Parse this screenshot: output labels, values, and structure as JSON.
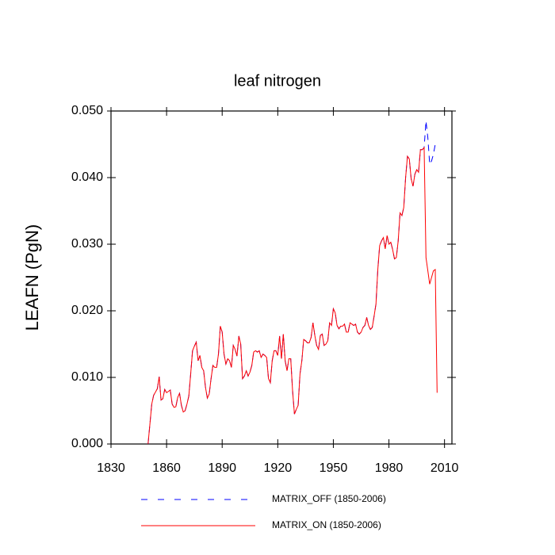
{
  "chart_data": {
    "type": "line",
    "title": "leaf nitrogen",
    "y_label": "LEAFN  (PgN)",
    "x": [
      1850,
      1851,
      1852,
      1853,
      1854,
      1855,
      1856,
      1857,
      1858,
      1859,
      1860,
      1861,
      1862,
      1863,
      1864,
      1865,
      1866,
      1867,
      1868,
      1869,
      1870,
      1871,
      1872,
      1873,
      1874,
      1875,
      1876,
      1877,
      1878,
      1879,
      1880,
      1881,
      1882,
      1883,
      1884,
      1885,
      1886,
      1887,
      1888,
      1889,
      1890,
      1891,
      1892,
      1893,
      1894,
      1895,
      1896,
      1897,
      1898,
      1899,
      1900,
      1901,
      1902,
      1903,
      1904,
      1905,
      1906,
      1907,
      1908,
      1909,
      1910,
      1911,
      1912,
      1913,
      1914,
      1915,
      1916,
      1917,
      1918,
      1919,
      1920,
      1921,
      1922,
      1923,
      1924,
      1925,
      1926,
      1927,
      1928,
      1929,
      1930,
      1931,
      1932,
      1933,
      1934,
      1935,
      1936,
      1937,
      1938,
      1939,
      1940,
      1941,
      1942,
      1943,
      1944,
      1945,
      1946,
      1947,
      1948,
      1949,
      1950,
      1951,
      1952,
      1953,
      1954,
      1955,
      1956,
      1957,
      1958,
      1959,
      1960,
      1961,
      1962,
      1963,
      1964,
      1965,
      1966,
      1967,
      1968,
      1969,
      1970,
      1971,
      1972,
      1973,
      1974,
      1975,
      1976,
      1977,
      1978,
      1979,
      1980,
      1981,
      1982,
      1983,
      1984,
      1985,
      1986,
      1987,
      1988,
      1989,
      1990,
      1991,
      1992,
      1993,
      1994,
      1995,
      1996,
      1997,
      1998,
      1999,
      2000,
      2001,
      2002,
      2003,
      2004,
      2005,
      2006
    ],
    "series": [
      {
        "name": "MATRIX_OFF (1850-2006)",
        "color": "#0000ff",
        "dash": true,
        "values": [
          0,
          0.003,
          0.006,
          0.0073,
          0.0078,
          0.0083,
          0.0101,
          0.0066,
          0.0068,
          0.0082,
          0.0077,
          0.0079,
          0.0081,
          0.006,
          0.0055,
          0.0056,
          0.007,
          0.0076,
          0.0058,
          0.0048,
          0.005,
          0.006,
          0.0072,
          0.0105,
          0.014,
          0.0147,
          0.0153,
          0.0125,
          0.0133,
          0.0115,
          0.011,
          0.0085,
          0.0069,
          0.0075,
          0.0098,
          0.0118,
          0.0115,
          0.0115,
          0.0135,
          0.0177,
          0.0168,
          0.0135,
          0.012,
          0.0128,
          0.0125,
          0.0115,
          0.0148,
          0.0142,
          0.0132,
          0.0162,
          0.015,
          0.0098,
          0.0102,
          0.011,
          0.0102,
          0.0108,
          0.0118,
          0.0138,
          0.014,
          0.0138,
          0.014,
          0.013,
          0.0135,
          0.0133,
          0.013,
          0.0098,
          0.0092,
          0.0125,
          0.014,
          0.014,
          0.0133,
          0.0162,
          0.0128,
          0.0165,
          0.0125,
          0.011,
          0.0128,
          0.0128,
          0.008,
          0.0045,
          0.0052,
          0.0058,
          0.0105,
          0.0125,
          0.0157,
          0.0155,
          0.0152,
          0.0152,
          0.016,
          0.0182,
          0.0163,
          0.0148,
          0.0142,
          0.0163,
          0.0165,
          0.0148,
          0.015,
          0.0155,
          0.0182,
          0.0178,
          0.0203,
          0.0197,
          0.0178,
          0.0173,
          0.0177,
          0.0177,
          0.018,
          0.0168,
          0.0168,
          0.0182,
          0.018,
          0.0178,
          0.018,
          0.0168,
          0.0165,
          0.0168,
          0.0175,
          0.0178,
          0.019,
          0.0178,
          0.0172,
          0.0175,
          0.0192,
          0.021,
          0.0262,
          0.0298,
          0.0305,
          0.031,
          0.0293,
          0.0313,
          0.03,
          0.0303,
          0.0292,
          0.0278,
          0.028,
          0.0305,
          0.0347,
          0.0343,
          0.0355,
          0.04,
          0.0432,
          0.0428,
          0.0398,
          0.0387,
          0.0405,
          0.0412,
          0.0408,
          0.0442,
          0.0442,
          0.0445,
          0.0485,
          0.046,
          0.042,
          0.0425,
          0.0435,
          0.045,
          0.045
        ]
      },
      {
        "name": "MATRIX_ON (1850-2006)",
        "color": "#ff0000",
        "dash": false,
        "values": [
          0,
          0.003,
          0.006,
          0.0073,
          0.0078,
          0.0083,
          0.0101,
          0.0066,
          0.0068,
          0.0082,
          0.0077,
          0.0079,
          0.0081,
          0.006,
          0.0055,
          0.0056,
          0.007,
          0.0076,
          0.0058,
          0.0048,
          0.005,
          0.006,
          0.0072,
          0.0105,
          0.014,
          0.0147,
          0.0153,
          0.0125,
          0.0133,
          0.0115,
          0.011,
          0.0085,
          0.0069,
          0.0075,
          0.0098,
          0.0118,
          0.0115,
          0.0115,
          0.0135,
          0.0177,
          0.0168,
          0.0135,
          0.012,
          0.0128,
          0.0125,
          0.0115,
          0.0148,
          0.0142,
          0.0132,
          0.0162,
          0.015,
          0.0098,
          0.0102,
          0.011,
          0.0102,
          0.0108,
          0.0118,
          0.0138,
          0.014,
          0.0138,
          0.014,
          0.013,
          0.0135,
          0.0133,
          0.013,
          0.0098,
          0.0092,
          0.0125,
          0.014,
          0.014,
          0.0133,
          0.0162,
          0.0128,
          0.0165,
          0.0125,
          0.011,
          0.0128,
          0.0128,
          0.008,
          0.0045,
          0.0052,
          0.0058,
          0.0105,
          0.0125,
          0.0157,
          0.0155,
          0.0152,
          0.0152,
          0.016,
          0.0182,
          0.0163,
          0.0148,
          0.0142,
          0.0163,
          0.0165,
          0.0148,
          0.015,
          0.0155,
          0.0182,
          0.0178,
          0.0203,
          0.0197,
          0.0178,
          0.0173,
          0.0177,
          0.0177,
          0.018,
          0.0168,
          0.0168,
          0.0182,
          0.018,
          0.0178,
          0.018,
          0.0168,
          0.0165,
          0.0168,
          0.0175,
          0.0178,
          0.019,
          0.0178,
          0.0172,
          0.0175,
          0.0192,
          0.021,
          0.0262,
          0.0298,
          0.0305,
          0.031,
          0.0293,
          0.0313,
          0.03,
          0.0303,
          0.0292,
          0.0278,
          0.028,
          0.0305,
          0.0347,
          0.0343,
          0.0355,
          0.04,
          0.0432,
          0.0428,
          0.0398,
          0.0387,
          0.0405,
          0.0412,
          0.0408,
          0.0442,
          0.0442,
          0.0445,
          0.028,
          0.026,
          0.024,
          0.025,
          0.026,
          0.0262,
          0.0077
        ]
      }
    ],
    "xlim": [
      1830,
      2014
    ],
    "ylim": [
      0,
      0.05
    ],
    "xticks": [
      1830,
      1860,
      1890,
      1920,
      1950,
      1980,
      2010
    ],
    "yticks": [
      {
        "value": 0,
        "label": "0.000"
      },
      {
        "value": 0.01,
        "label": "0.010"
      },
      {
        "value": 0.02,
        "label": "0.020"
      },
      {
        "value": 0.03,
        "label": "0.030"
      },
      {
        "value": 0.04,
        "label": "0.040"
      },
      {
        "value": 0.05,
        "label": "0.050"
      }
    ],
    "grid": false,
    "legend": "bottom"
  }
}
